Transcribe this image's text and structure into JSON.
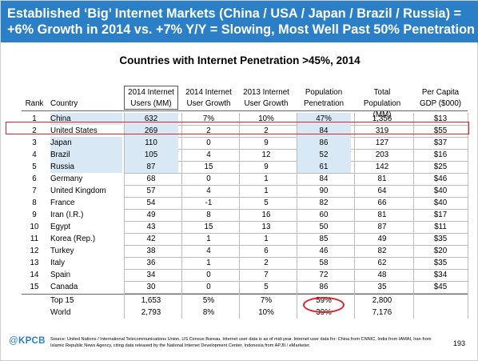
{
  "slide": {
    "title_line1": "Established ‘Big’ Internet Markets (China / USA / Japan / Brazil / Russia) =",
    "title_line2": "+6% Growth in 2014 vs. +7% Y/Y = Slowing, Most Well Past  50% Penetration",
    "table_title": "Countries with Internet Penetration >45%, 2014",
    "header_color": "#2a7fc6",
    "highlight_color": "#d9262c",
    "shade_color": "#d8e9f5"
  },
  "table": {
    "headers": {
      "rank": "Rank",
      "country": "Country",
      "c1": [
        "2014 Internet",
        "Users (MM)"
      ],
      "c2": [
        "2014 Internet",
        "User Growth"
      ],
      "c3": [
        "2013 Internet",
        "User Growth"
      ],
      "c4": [
        "Population",
        "Penetration"
      ],
      "c5": [
        "Total",
        "Population (MM)"
      ],
      "c6": [
        "Per Capita",
        "GDP ($000)"
      ]
    },
    "rows": [
      {
        "rank": "1",
        "country": "China",
        "users": "632",
        "growth14": "7%",
        "growth13": "10%",
        "penetration": "47%",
        "population": "1,356",
        "gdp": "$13"
      },
      {
        "rank": "2",
        "country": "United States",
        "users": "269",
        "growth14": "2",
        "growth13": "2",
        "penetration": "84",
        "population": "319",
        "gdp": "$55"
      },
      {
        "rank": "3",
        "country": "Japan",
        "users": "110",
        "growth14": "0",
        "growth13": "9",
        "penetration": "86",
        "population": "127",
        "gdp": "$37"
      },
      {
        "rank": "4",
        "country": "Brazil",
        "users": "105",
        "growth14": "4",
        "growth13": "12",
        "penetration": "52",
        "population": "203",
        "gdp": "$16"
      },
      {
        "rank": "5",
        "country": "Russia",
        "users": "87",
        "growth14": "15",
        "growth13": "9",
        "penetration": "61",
        "population": "142",
        "gdp": "$25"
      },
      {
        "rank": "6",
        "country": "Germany",
        "users": "68",
        "growth14": "0",
        "growth13": "1",
        "penetration": "84",
        "population": "81",
        "gdp": "$46"
      },
      {
        "rank": "7",
        "country": "United Kingdom",
        "users": "57",
        "growth14": "4",
        "growth13": "1",
        "penetration": "90",
        "population": "64",
        "gdp": "$40"
      },
      {
        "rank": "8",
        "country": "France",
        "users": "54",
        "growth14": "-1",
        "growth13": "5",
        "penetration": "82",
        "population": "66",
        "gdp": "$40"
      },
      {
        "rank": "9",
        "country": "Iran (I.R.)",
        "users": "49",
        "growth14": "8",
        "growth13": "16",
        "penetration": "60",
        "population": "81",
        "gdp": "$17"
      },
      {
        "rank": "10",
        "country": "Egypt",
        "users": "43",
        "growth14": "15",
        "growth13": "13",
        "penetration": "50",
        "population": "87",
        "gdp": "$11"
      },
      {
        "rank": "11",
        "country": "Korea (Rep.)",
        "users": "42",
        "growth14": "1",
        "growth13": "1",
        "penetration": "85",
        "population": "49",
        "gdp": "$35"
      },
      {
        "rank": "12",
        "country": "Turkey",
        "users": "38",
        "growth14": "4",
        "growth13": "6",
        "penetration": "46",
        "population": "82",
        "gdp": "$20"
      },
      {
        "rank": "13",
        "country": "Italy",
        "users": "36",
        "growth14": "1",
        "growth13": "2",
        "penetration": "58",
        "population": "62",
        "gdp": "$35"
      },
      {
        "rank": "14",
        "country": "Spain",
        "users": "34",
        "growth14": "0",
        "growth13": "7",
        "penetration": "72",
        "population": "48",
        "gdp": "$34"
      },
      {
        "rank": "15",
        "country": "Canada",
        "users": "30",
        "growth14": "0",
        "growth13": "5",
        "penetration": "86",
        "population": "35",
        "gdp": "$45"
      }
    ],
    "totals": [
      {
        "rank": "",
        "country": "Top 15",
        "users": "1,653",
        "growth14": "5%",
        "growth13": "7%",
        "penetration": "59%",
        "population": "2,800",
        "gdp": ""
      },
      {
        "rank": "",
        "country": "World",
        "users": "2,793",
        "growth14": "8%",
        "growth13": "10%",
        "penetration": "39%",
        "population": "7,176",
        "gdp": ""
      }
    ]
  },
  "footer": {
    "logo_at": "@",
    "logo_text": "KPCB",
    "source": "Source: United Nations / International Telecommunications Union, US Census Bureau. Internet user data is as of mid-year. Internet user data for: China from CNNIC, India from IAMAI, Iran from Islamic Republic News Agency, citing data released by the National Internet Development Center, Indonesia from APJII / eMarketer.",
    "page": "193"
  }
}
